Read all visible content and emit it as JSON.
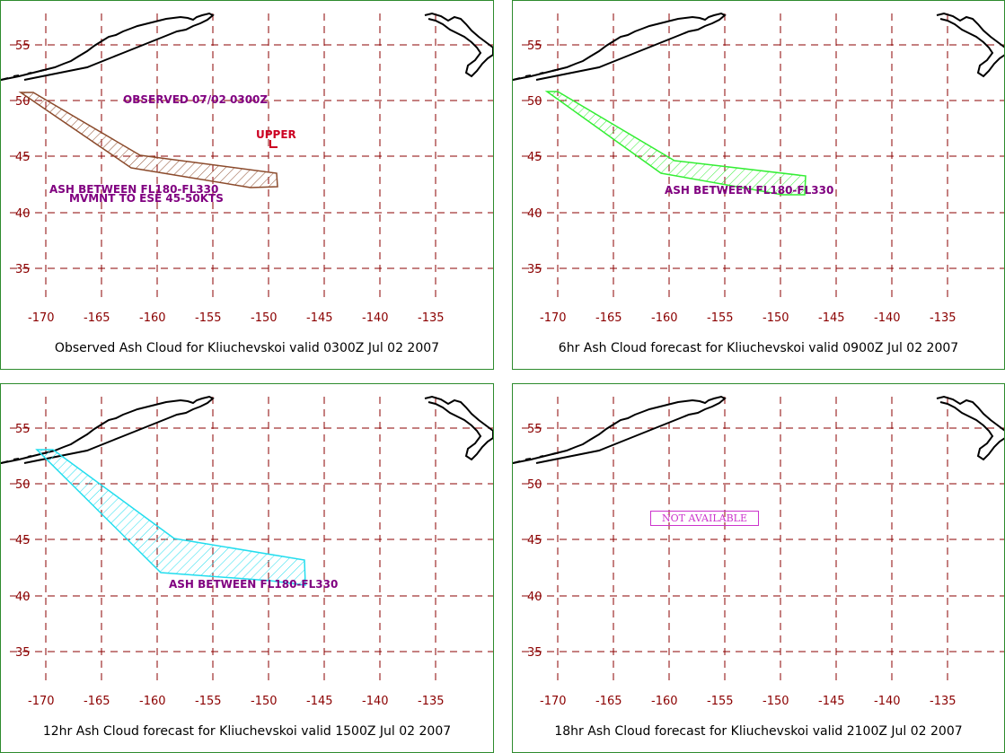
{
  "map": {
    "lat_ticks": [
      "55",
      "50",
      "45",
      "40",
      "35"
    ],
    "lon_ticks": [
      "-170",
      "-165",
      "-160",
      "-155",
      "-150",
      "-145",
      "-140",
      "-135"
    ],
    "grid_style": "dashed",
    "grid_color": "#8b0000",
    "coast_color": "#000000"
  },
  "panels": [
    {
      "caption": "Observed Ash Cloud for Kliuchevskoi valid 0300Z Jul 02 2007",
      "cloud_color": "#8b4a2b",
      "labels": {
        "observed": "OBSERVED 07/02 0300Z",
        "upper": "UPPER",
        "ash": "ASH BETWEEN FL180-FL330",
        "movement": "MVMNT TO ESE 45-50KTS"
      }
    },
    {
      "caption": "6hr Ash Cloud forecast for Kliuchevskoi valid 0900Z Jul 02 2007",
      "cloud_color": "#33ee33",
      "labels": {
        "ash": "ASH BETWEEN FL180-FL330"
      }
    },
    {
      "caption": "12hr Ash Cloud forecast for Kliuchevskoi valid 1500Z Jul 02 2007",
      "cloud_color": "#22ddee",
      "labels": {
        "ash": "ASH BETWEEN FL180-FL330"
      }
    },
    {
      "caption": "18hr Ash Cloud forecast for Kliuchevskoi valid 2100Z Jul 02 2007",
      "not_available": "NOT AVAILABLE"
    }
  ]
}
